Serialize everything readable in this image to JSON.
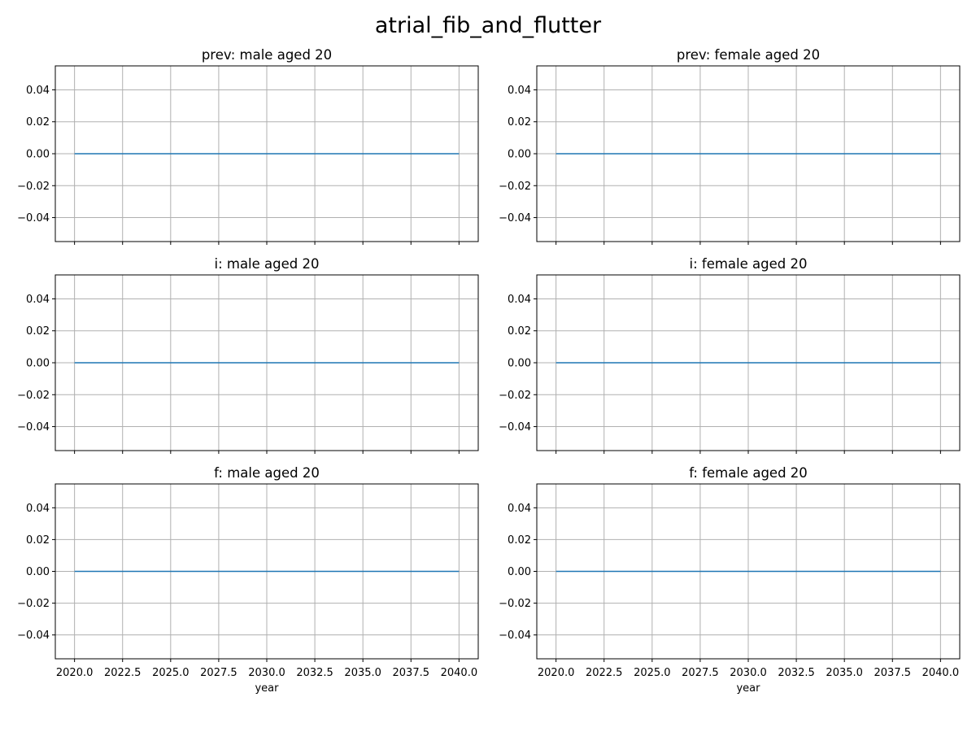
{
  "figure": {
    "title": "atrial_fib_and_flutter",
    "line_color": "#1f77b4",
    "grid": true
  },
  "chart_data": [
    {
      "type": "line",
      "title": "prev: male aged 20",
      "xlabel": "",
      "ylabel": "",
      "x": [
        2020,
        2040
      ],
      "y": [
        0.0,
        0.0
      ],
      "xlim": [
        2019,
        2041
      ],
      "ylim": [
        -0.055,
        0.055
      ],
      "xticks": [
        2020.0,
        2022.5,
        2025.0,
        2027.5,
        2030.0,
        2032.5,
        2035.0,
        2037.5,
        2040.0
      ],
      "xtick_labels_visible": false,
      "yticks": [
        -0.04,
        -0.02,
        0.0,
        0.02,
        0.04
      ]
    },
    {
      "type": "line",
      "title": "prev: female aged 20",
      "xlabel": "",
      "ylabel": "",
      "x": [
        2020,
        2040
      ],
      "y": [
        0.0,
        0.0
      ],
      "xlim": [
        2019,
        2041
      ],
      "ylim": [
        -0.055,
        0.055
      ],
      "xticks": [
        2020.0,
        2022.5,
        2025.0,
        2027.5,
        2030.0,
        2032.5,
        2035.0,
        2037.5,
        2040.0
      ],
      "xtick_labels_visible": false,
      "yticks": [
        -0.04,
        -0.02,
        0.0,
        0.02,
        0.04
      ]
    },
    {
      "type": "line",
      "title": "i: male aged 20",
      "xlabel": "",
      "ylabel": "",
      "x": [
        2020,
        2040
      ],
      "y": [
        0.0,
        0.0
      ],
      "xlim": [
        2019,
        2041
      ],
      "ylim": [
        -0.055,
        0.055
      ],
      "xticks": [
        2020.0,
        2022.5,
        2025.0,
        2027.5,
        2030.0,
        2032.5,
        2035.0,
        2037.5,
        2040.0
      ],
      "xtick_labels_visible": false,
      "yticks": [
        -0.04,
        -0.02,
        0.0,
        0.02,
        0.04
      ]
    },
    {
      "type": "line",
      "title": "i: female aged 20",
      "xlabel": "",
      "ylabel": "",
      "x": [
        2020,
        2040
      ],
      "y": [
        0.0,
        0.0
      ],
      "xlim": [
        2019,
        2041
      ],
      "ylim": [
        -0.055,
        0.055
      ],
      "xticks": [
        2020.0,
        2022.5,
        2025.0,
        2027.5,
        2030.0,
        2032.5,
        2035.0,
        2037.5,
        2040.0
      ],
      "xtick_labels_visible": false,
      "yticks": [
        -0.04,
        -0.02,
        0.0,
        0.02,
        0.04
      ]
    },
    {
      "type": "line",
      "title": "f: male aged 20",
      "xlabel": "year",
      "ylabel": "",
      "x": [
        2020,
        2040
      ],
      "y": [
        0.0,
        0.0
      ],
      "xlim": [
        2019,
        2041
      ],
      "ylim": [
        -0.055,
        0.055
      ],
      "xticks": [
        2020.0,
        2022.5,
        2025.0,
        2027.5,
        2030.0,
        2032.5,
        2035.0,
        2037.5,
        2040.0
      ],
      "xtick_labels_visible": true,
      "yticks": [
        -0.04,
        -0.02,
        0.0,
        0.02,
        0.04
      ]
    },
    {
      "type": "line",
      "title": "f: female aged 20",
      "xlabel": "year",
      "ylabel": "",
      "x": [
        2020,
        2040
      ],
      "y": [
        0.0,
        0.0
      ],
      "xlim": [
        2019,
        2041
      ],
      "ylim": [
        -0.055,
        0.055
      ],
      "xticks": [
        2020.0,
        2022.5,
        2025.0,
        2027.5,
        2030.0,
        2032.5,
        2035.0,
        2037.5,
        2040.0
      ],
      "xtick_labels_visible": true,
      "yticks": [
        -0.04,
        -0.02,
        0.0,
        0.02,
        0.04
      ]
    }
  ]
}
